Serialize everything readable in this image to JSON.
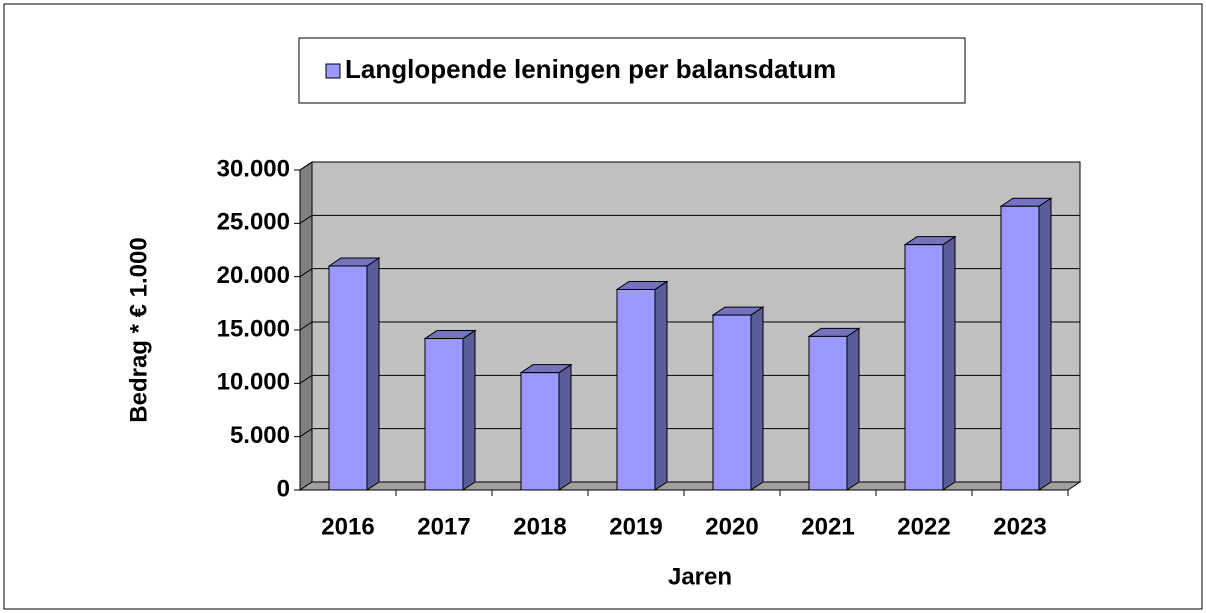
{
  "chart_data": {
    "type": "bar3d",
    "categories": [
      "2016",
      "2017",
      "2018",
      "2019",
      "2020",
      "2021",
      "2022",
      "2023"
    ],
    "series": [
      {
        "name": "Langlopende leningen per balansdatum",
        "color": "#9999ff",
        "values": [
          21000,
          14200,
          11000,
          18800,
          16400,
          14400,
          23000,
          26600
        ]
      }
    ],
    "ylim": [
      0,
      30000
    ],
    "yticks": [
      0,
      {
        "value": 5000,
        "label": "5.000"
      },
      {
        "value": 10000,
        "label": "10.000"
      },
      {
        "value": 15000,
        "label": "15.000"
      },
      {
        "value": 20000,
        "label": "20.000"
      },
      {
        "value": 25000,
        "label": "25.000"
      },
      {
        "value": 30000,
        "label": "30.000"
      }
    ],
    "y_label": "Bedrag * € 1.000",
    "x_label": "Jaren",
    "grid": true,
    "legend": "top"
  }
}
